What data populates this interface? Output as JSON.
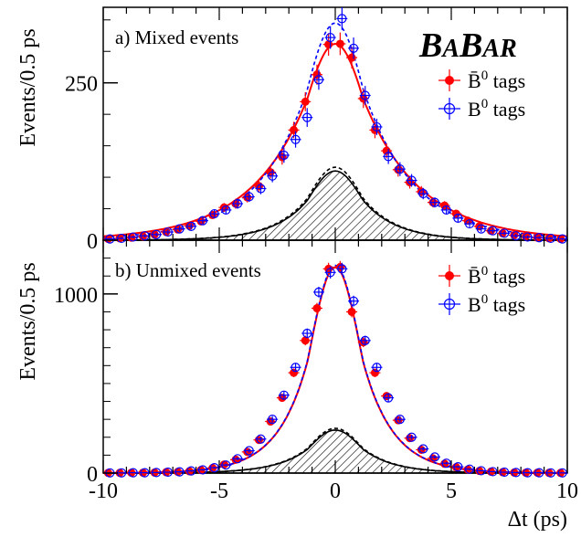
{
  "colors": {
    "bbar_tags": "#ff0000",
    "b0_tags": "#0000ff",
    "background_fit": "#000000",
    "frame": "#000000"
  },
  "logo": {
    "text_parts": [
      "B",
      "A",
      "B",
      "A",
      "R"
    ],
    "full": "BABAR"
  },
  "shared_x_axis": {
    "label": "Δt (ps)",
    "ticks": [
      "-10",
      "-5",
      "0",
      "5",
      "10"
    ]
  },
  "chart_data": [
    {
      "type": "scatter",
      "panel_label": "a) Mixed events",
      "ylabel": "Events/0.5 ps",
      "xlim": [
        -10,
        10
      ],
      "ylim": [
        0,
        370
      ],
      "y_ticks": [
        0,
        250
      ],
      "y_tick_labels": [
        "0",
        "250"
      ],
      "legend_position": "top-right",
      "legend": [
        {
          "label": "B̄",
          "sup": "0",
          "suffix": " tags",
          "marker": "filled-circle",
          "color": "#ff0000"
        },
        {
          "label": "B",
          "sup": "0",
          "suffix": " tags",
          "marker": "open-circle-cross",
          "color": "#0000ff"
        }
      ],
      "series": [
        {
          "name": "B̄0 tags",
          "marker": "filled",
          "x": [
            -9.75,
            -9.25,
            -8.75,
            -8.25,
            -7.75,
            -7.25,
            -6.75,
            -6.25,
            -5.75,
            -5.25,
            -4.75,
            -4.25,
            -3.75,
            -3.25,
            -2.75,
            -2.25,
            -1.75,
            -1.25,
            -0.75,
            -0.25,
            0.25,
            0.75,
            1.25,
            1.75,
            2.25,
            2.75,
            3.25,
            3.75,
            4.25,
            4.75,
            5.25,
            5.75,
            6.25,
            6.75,
            7.25,
            7.75,
            8.25,
            8.75,
            9.25,
            9.75
          ],
          "y": [
            2,
            3,
            4,
            6,
            9,
            13,
            17,
            23,
            30,
            40,
            52,
            58,
            68,
            86,
            108,
            132,
            175,
            220,
            263,
            311,
            312,
            290,
            225,
            175,
            142,
            112,
            92,
            77,
            60,
            55,
            42,
            31,
            22,
            15,
            11,
            8,
            6,
            4,
            3,
            2
          ],
          "err": [
            1.5,
            2,
            2,
            2.5,
            3,
            4,
            4,
            5,
            5.5,
            6,
            7,
            8,
            8,
            9,
            10,
            12,
            13,
            15,
            16,
            18,
            18,
            17,
            15,
            13,
            12,
            11,
            10,
            9,
            8,
            7,
            6.5,
            5.5,
            5,
            4,
            3,
            3,
            2.5,
            2,
            2,
            1.5
          ]
        },
        {
          "name": "B0 tags",
          "marker": "open",
          "x": [
            -9.75,
            -9.25,
            -8.75,
            -8.25,
            -7.75,
            -7.25,
            -6.75,
            -6.25,
            -5.75,
            -5.25,
            -4.75,
            -4.25,
            -3.75,
            -3.25,
            -2.75,
            -2.25,
            -1.75,
            -1.25,
            -0.75,
            -0.25,
            0.25,
            0.75,
            1.25,
            1.75,
            2.25,
            2.75,
            3.25,
            3.75,
            4.25,
            4.75,
            5.25,
            5.75,
            6.25,
            6.75,
            7.25,
            7.75,
            8.25,
            8.75,
            9.25,
            9.75
          ],
          "y": [
            2,
            3,
            5,
            7,
            9,
            13,
            18,
            22,
            31,
            42,
            48,
            58,
            69,
            82,
            102,
            135,
            160,
            195,
            255,
            322,
            352,
            305,
            230,
            180,
            133,
            113,
            95,
            74,
            60,
            48,
            35,
            26,
            18,
            15,
            11,
            7,
            5,
            4,
            3,
            2
          ],
          "err": [
            1.5,
            2,
            2,
            2.5,
            3,
            4,
            4,
            5,
            5.5,
            6,
            7,
            8,
            8,
            9,
            10,
            12,
            13,
            15,
            16,
            18,
            18,
            17,
            15,
            13,
            12,
            11,
            10,
            9,
            8,
            7,
            6.5,
            5.5,
            5,
            4,
            3,
            3,
            2.5,
            2,
            2,
            1.5
          ]
        }
      ],
      "fits": [
        {
          "name": "B̄0 tags fit",
          "style": "solid",
          "color": "#ff0000",
          "peak": 312,
          "tau": 2.45
        },
        {
          "name": "B0 tags fit",
          "style": "dashed",
          "color": "#0000ff",
          "peak": 345,
          "tau": 2.2
        },
        {
          "name": "background",
          "style": "hatched",
          "color": "#000000",
          "peak": 110,
          "tau": 1.45
        },
        {
          "name": "background dashed",
          "style": "dashed",
          "color": "#000000",
          "peak": 116,
          "tau": 1.45
        }
      ]
    },
    {
      "type": "scatter",
      "panel_label": "b) Unmixed events",
      "ylabel": "Events/0.5 ps",
      "xlim": [
        -10,
        10
      ],
      "ylim": [
        0,
        1300
      ],
      "y_ticks": [
        0,
        1000
      ],
      "y_tick_labels": [
        "0",
        "1000"
      ],
      "legend_position": "top-right",
      "legend": [
        {
          "label": "B̄",
          "sup": "0",
          "suffix": " tags",
          "marker": "filled-circle",
          "color": "#ff0000"
        },
        {
          "label": "B",
          "sup": "0",
          "suffix": " tags",
          "marker": "open-circle-cross",
          "color": "#0000ff"
        }
      ],
      "series": [
        {
          "name": "B̄0 tags",
          "marker": "filled",
          "x": [
            -9.75,
            -9.25,
            -8.75,
            -8.25,
            -7.75,
            -7.25,
            -6.75,
            -6.25,
            -5.75,
            -5.25,
            -4.75,
            -4.25,
            -3.75,
            -3.25,
            -2.75,
            -2.25,
            -1.75,
            -1.25,
            -0.75,
            -0.25,
            0.25,
            0.75,
            1.25,
            1.75,
            2.25,
            2.75,
            3.25,
            3.75,
            4.25,
            4.75,
            5.25,
            5.75,
            6.25,
            6.75,
            7.25,
            7.75,
            8.25,
            8.75,
            9.25,
            9.75
          ],
          "y": [
            1,
            1,
            2,
            2,
            3,
            5,
            7,
            10,
            17,
            28,
            48,
            75,
            118,
            185,
            288,
            420,
            560,
            740,
            920,
            1140,
            1150,
            900,
            730,
            560,
            430,
            295,
            195,
            130,
            82,
            52,
            33,
            20,
            12,
            8,
            5,
            3,
            2,
            2,
            1,
            1
          ],
          "err": [
            1,
            1,
            1.5,
            1.5,
            2,
            2.5,
            3,
            3.5,
            4.5,
            6,
            7,
            9,
            11,
            14,
            17,
            20,
            24,
            27,
            30,
            34,
            34,
            30,
            27,
            24,
            21,
            17,
            14,
            11,
            9,
            7,
            6,
            4.5,
            3.5,
            3,
            2.5,
            2,
            1.5,
            1.5,
            1,
            1
          ]
        },
        {
          "name": "B0 tags",
          "marker": "open",
          "x": [
            -9.75,
            -9.25,
            -8.75,
            -8.25,
            -7.75,
            -7.25,
            -6.75,
            -6.25,
            -5.75,
            -5.25,
            -4.75,
            -4.25,
            -3.75,
            -3.25,
            -2.75,
            -2.25,
            -1.75,
            -1.25,
            -0.75,
            -0.25,
            0.25,
            0.75,
            1.25,
            1.75,
            2.25,
            2.75,
            3.25,
            3.75,
            4.25,
            4.75,
            5.25,
            5.75,
            6.25,
            6.75,
            7.25,
            7.75,
            8.25,
            8.75,
            9.25,
            9.75
          ],
          "y": [
            1,
            1,
            2,
            2,
            3,
            5,
            7,
            12,
            18,
            30,
            45,
            80,
            125,
            190,
            300,
            435,
            590,
            780,
            1010,
            1120,
            1140,
            960,
            740,
            590,
            420,
            300,
            200,
            135,
            90,
            55,
            35,
            22,
            13,
            8,
            5,
            3,
            2,
            2,
            1,
            1
          ],
          "err": [
            1,
            1,
            1.5,
            1.5,
            2,
            2.5,
            3,
            3.5,
            4.5,
            6,
            7,
            9,
            11,
            14,
            17,
            20,
            24,
            27,
            30,
            34,
            34,
            30,
            27,
            24,
            21,
            17,
            14,
            11,
            9,
            7,
            6,
            4.5,
            3.5,
            3,
            2.5,
            2,
            1.5,
            1.5,
            1,
            1
          ]
        }
      ],
      "fits": [
        {
          "name": "B̄0 tags fit",
          "style": "solid",
          "color": "#ff0000",
          "peak": 1150,
          "tau": 1.3
        },
        {
          "name": "B0 tags fit",
          "style": "dashed",
          "color": "#0000ff",
          "peak": 1160,
          "tau": 1.3
        },
        {
          "name": "background",
          "style": "hatched",
          "color": "#000000",
          "peak": 240,
          "tau": 1.35
        },
        {
          "name": "background dashed",
          "style": "dashed",
          "color": "#000000",
          "peak": 250,
          "tau": 1.35
        }
      ]
    }
  ]
}
